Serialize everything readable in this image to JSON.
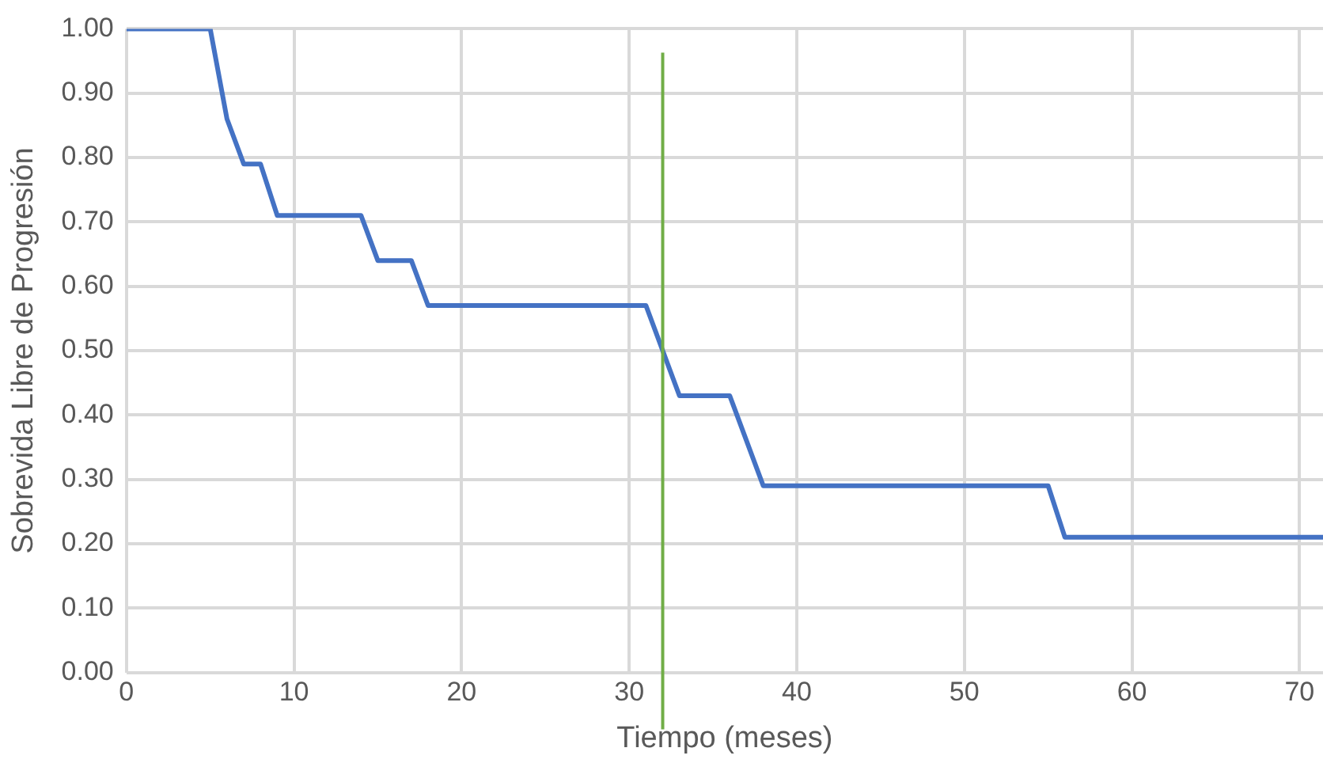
{
  "chart_data": {
    "type": "line",
    "xlabel": "Tiempo (meses)",
    "ylabel": "Sobrevida Libre de Progresión",
    "series": [
      {
        "color": "#4472c4",
        "x": [
          0,
          5,
          6,
          7,
          8,
          9,
          14,
          15,
          17,
          18,
          31,
          33,
          36,
          38,
          55,
          56,
          71.4
        ],
        "values": [
          1,
          1,
          0.86,
          0.79,
          0.79,
          0.71,
          0.71,
          0.64,
          0.64,
          0.57,
          0.57,
          0.43,
          0.43,
          0.29,
          0.29,
          0.21,
          0.21
        ]
      }
    ],
    "xlim": [
      0,
      71.4
    ],
    "xticks": [
      0,
      10,
      20,
      30,
      40,
      50,
      60,
      70
    ],
    "ylim": [
      0,
      1
    ],
    "yticks": [
      {
        "value": 0,
        "label": "0.00"
      },
      {
        "value": 0.1,
        "label": "0.10"
      },
      {
        "value": 0.2,
        "label": "0.20"
      },
      {
        "value": 0.3,
        "label": "0.30"
      },
      {
        "value": 0.4,
        "label": "0.40"
      },
      {
        "value": 0.5,
        "label": "0.50"
      },
      {
        "value": 0.6,
        "label": "0.60"
      },
      {
        "value": 0.7,
        "label": "0.70"
      },
      {
        "value": 0.8,
        "label": "0.80"
      },
      {
        "value": 0.9,
        "label": "0.90"
      },
      {
        "value": 1,
        "label": "1.00"
      }
    ],
    "ref_lines": [
      {
        "axis": "x",
        "value": 32,
        "color": "#70ad47"
      }
    ],
    "grid": true,
    "legend": false,
    "marker": "none",
    "line_style": "solid"
  }
}
